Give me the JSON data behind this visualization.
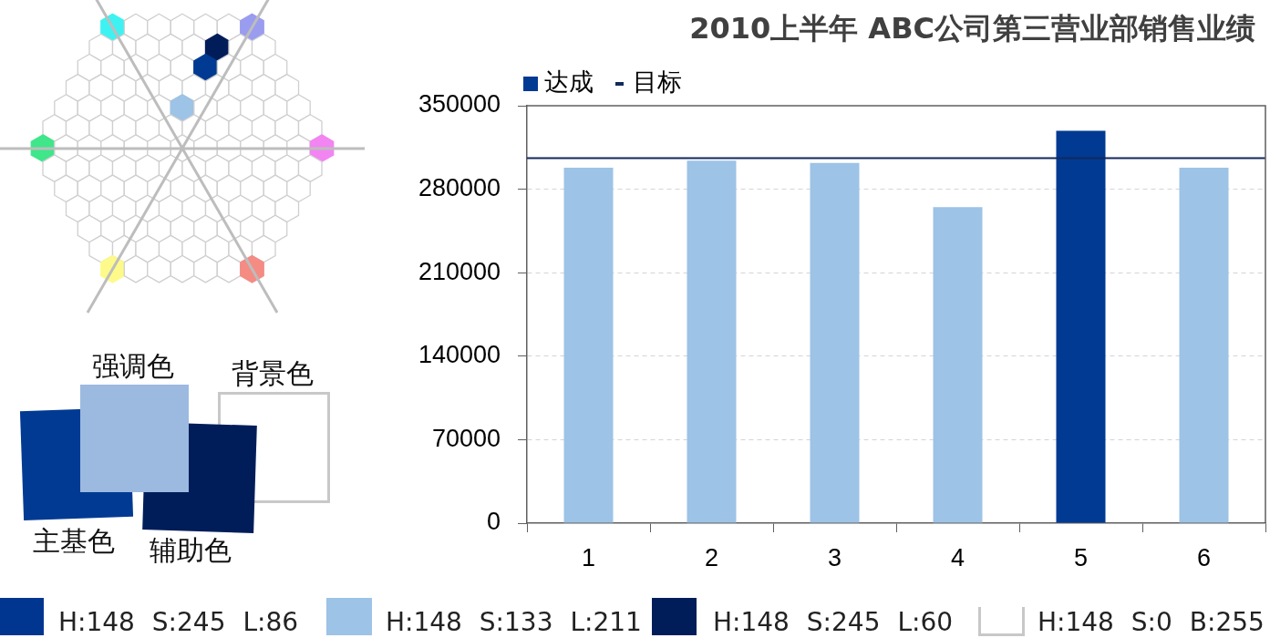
{
  "chart_data": {
    "type": "bar",
    "title": "2010上半年 ABC公司第三营业部销售业绩",
    "categories": [
      "1",
      "2",
      "3",
      "4",
      "5",
      "6"
    ],
    "series": [
      {
        "name": "达成",
        "color": "#003a93",
        "colors": [
          "#9dc3e6",
          "#9dc3e6",
          "#9dc3e6",
          "#9dc3e6",
          "#003a93",
          "#9dc3e6"
        ],
        "values": [
          298000,
          304000,
          302000,
          265000,
          329000,
          298000
        ]
      }
    ],
    "ylim": [
      0,
      350000
    ],
    "yticks": [
      0,
      70000,
      140000,
      210000,
      280000,
      350000
    ],
    "grid": "y",
    "legend": "top left",
    "ref_lines": [
      {
        "axis": "y",
        "value": 306000,
        "label": "目标",
        "color": "#13295c"
      }
    ],
    "annotations": [
      "强调色",
      "背景色",
      "主基色",
      "辅助色",
      "H:148 S:245 L:86",
      "H:148 S:133 L:211",
      "H:148 S:245 L:60",
      "H:148 S:0 B:255"
    ]
  }
}
